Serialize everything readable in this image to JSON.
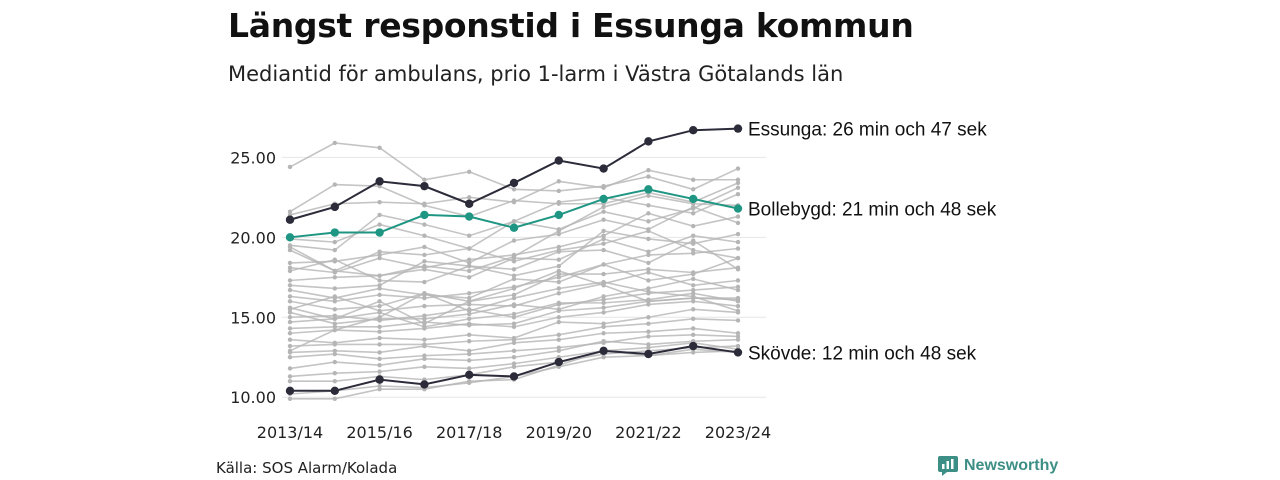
{
  "title": "Längst responstid i Essunga kommun",
  "subtitle": "Mediantid för ambulans, prio 1-larm i Västra Götalands län",
  "source": "Källa: SOS Alarm/Kolada",
  "brand": {
    "name": "Newsworthy",
    "icon": "newsworthy-logo-icon",
    "color": "#3d8f86"
  },
  "chart_data": {
    "type": "line",
    "x": [
      "2013/14",
      "2014/15",
      "2015/16",
      "2016/17",
      "2017/18",
      "2018/19",
      "2019/20",
      "2020/21",
      "2021/22",
      "2022/23",
      "2023/24"
    ],
    "x_tick_labels": [
      "2013/14",
      "2015/16",
      "2017/18",
      "2019/20",
      "2021/22",
      "2023/24"
    ],
    "y_ticks": [
      "10.00",
      "15.00",
      "20.00",
      "25.00"
    ],
    "ylim": [
      9.7,
      27.4
    ],
    "grid": "horizontal",
    "highlighted_series": [
      {
        "name": "Essunga",
        "label": "Essunga: 26 min och 47 sek",
        "color": "#2b2b3a",
        "values": [
          21.1,
          21.9,
          23.5,
          23.2,
          22.1,
          23.4,
          24.8,
          24.3,
          26.0,
          26.7,
          26.8
        ]
      },
      {
        "name": "Bollebygd",
        "label": "Bollebygd: 21 min och 48 sek",
        "color": "#1f9683",
        "values": [
          20.0,
          20.3,
          20.3,
          21.4,
          21.3,
          20.6,
          21.4,
          22.4,
          23.0,
          22.4,
          21.8
        ]
      },
      {
        "name": "Skövde",
        "label": "Skövde: 12 min och 48 sek",
        "color": "#2b2b3a",
        "values": [
          10.4,
          10.4,
          11.1,
          10.8,
          11.4,
          11.3,
          12.2,
          12.9,
          12.7,
          13.2,
          12.8
        ]
      }
    ],
    "background_color": "#b5b5b5",
    "background_series": [
      [
        24.4,
        25.9,
        25.6,
        23.6,
        24.1,
        23.0,
        22.9,
        23.2,
        23.8,
        23.0,
        24.3
      ],
      [
        21.6,
        23.3,
        23.2,
        22.0,
        21.3,
        22.3,
        22.1,
        22.1,
        22.8,
        22.2,
        23.4
      ],
      [
        21.4,
        22.1,
        22.2,
        22.1,
        22.5,
        22.2,
        23.5,
        23.1,
        24.2,
        23.6,
        23.6
      ],
      [
        19.5,
        19.2,
        21.4,
        20.8,
        20.1,
        21.0,
        22.2,
        22.5,
        22.0,
        21.5,
        22.7
      ],
      [
        19.2,
        17.9,
        17.6,
        18.2,
        17.9,
        18.8,
        20.4,
        21.9,
        22.6,
        22.1,
        22.0
      ],
      [
        18.4,
        18.5,
        18.9,
        19.4,
        18.4,
        19.8,
        20.2,
        21.1,
        20.5,
        21.9,
        20.9
      ],
      [
        18.1,
        17.8,
        18.7,
        18.1,
        18.6,
        18.9,
        19.4,
        20.1,
        21.5,
        20.7,
        21.3
      ],
      [
        17.9,
        18.6,
        17.3,
        17.2,
        18.2,
        17.6,
        18.2,
        20.4,
        19.9,
        19.6,
        20.2
      ],
      [
        17.3,
        17.5,
        17.6,
        18.0,
        17.5,
        18.7,
        18.6,
        19.9,
        19.1,
        20.1,
        19.7
      ],
      [
        17.0,
        16.8,
        17.0,
        18.5,
        18.2,
        18.0,
        19.1,
        19.2,
        18.4,
        19.8,
        18.0
      ],
      [
        16.7,
        16.2,
        16.8,
        16.4,
        16.2,
        17.4,
        17.2,
        18.3,
        18.9,
        19.0,
        19.3
      ],
      [
        16.3,
        16.0,
        16.4,
        16.2,
        16.5,
        16.9,
        17.5,
        18.3,
        17.3,
        17.7,
        18.7
      ],
      [
        16.0,
        15.5,
        15.7,
        16.5,
        16.0,
        16.4,
        17.7,
        17.7,
        18.0,
        17.8,
        18.1
      ],
      [
        15.5,
        16.3,
        15.4,
        15.7,
        15.8,
        15.7,
        16.5,
        17.1,
        17.8,
        17.0,
        17.3
      ],
      [
        15.3,
        14.6,
        14.9,
        14.9,
        15.2,
        15.8,
        15.5,
        16.3,
        16.8,
        17.4,
        16.7
      ],
      [
        15.0,
        15.1,
        14.8,
        15.1,
        15.5,
        15.0,
        15.8,
        16.1,
        16.5,
        16.7,
        16.9
      ],
      [
        14.7,
        14.9,
        15.3,
        14.4,
        14.9,
        15.2,
        15.9,
        15.9,
        16.1,
        16.5,
        16.0
      ],
      [
        14.3,
        14.4,
        14.4,
        14.7,
        14.5,
        14.6,
        15.4,
        15.6,
        16.0,
        16.2,
        16.1
      ],
      [
        14.0,
        14.2,
        14.1,
        14.3,
        14.6,
        14.4,
        15.0,
        15.3,
        15.8,
        16.0,
        15.7
      ],
      [
        13.6,
        13.4,
        13.7,
        13.6,
        13.9,
        13.7,
        14.7,
        14.6,
        15.0,
        15.5,
        15.3
      ],
      [
        13.2,
        13.3,
        13.3,
        13.3,
        13.5,
        13.6,
        13.9,
        14.4,
        14.6,
        14.9,
        14.8
      ],
      [
        12.8,
        12.9,
        12.8,
        13.2,
        12.9,
        13.4,
        13.6,
        14.0,
        14.1,
        14.3,
        14.0
      ],
      [
        12.5,
        12.7,
        12.4,
        12.6,
        12.7,
        12.9,
        13.1,
        13.4,
        13.8,
        13.9,
        13.8
      ],
      [
        11.8,
        12.2,
        12.0,
        12.4,
        12.3,
        12.5,
        12.9,
        13.5,
        13.3,
        13.5,
        13.6
      ],
      [
        11.3,
        11.5,
        11.6,
        11.9,
        11.8,
        12.1,
        12.5,
        12.9,
        13.1,
        13.4,
        13.0
      ],
      [
        11.0,
        11.0,
        11.3,
        11.1,
        11.4,
        11.9,
        12.2,
        12.7,
        12.9,
        13.1,
        13.2
      ],
      [
        10.2,
        10.4,
        10.7,
        10.6,
        10.9,
        11.3,
        11.9,
        12.5,
        12.6,
        12.8,
        12.9
      ],
      [
        9.9,
        9.9,
        10.5,
        10.5,
        11.0,
        11.1,
        12.0,
        12.9,
        12.6,
        13.0,
        12.8
      ],
      [
        19.9,
        19.7,
        20.8,
        20.1,
        19.3,
        21.0,
        20.5,
        21.6,
        21.0,
        21.8,
        23.1
      ],
      [
        19.4,
        17.9,
        19.1,
        18.9,
        19.3,
        18.5,
        19.2,
        19.6,
        20.4,
        19.2,
        18.7
      ],
      [
        12.9,
        14.2,
        15.0,
        16.5,
        15.4,
        16.2,
        16.8,
        17.2,
        16.6,
        16.3,
        15.4
      ],
      [
        15.6,
        14.9,
        16.0,
        14.6,
        16.0,
        16.8,
        17.9,
        17.0,
        16.0,
        16.2,
        16.2
      ]
    ]
  }
}
